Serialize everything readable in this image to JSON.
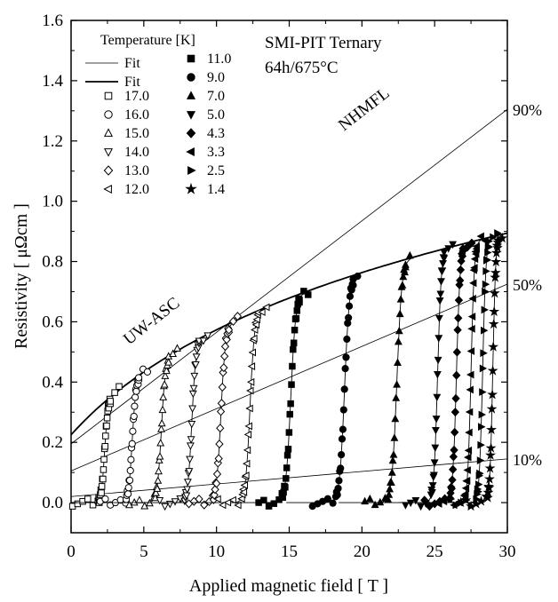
{
  "chart_data": {
    "type": "scatter",
    "xlabel": "Applied magnetic field [ T ]",
    "ylabel": "Resistivity [ μΩcm ]",
    "xlim": [
      0,
      30
    ],
    "ylim": [
      -0.1,
      1.6
    ],
    "x_ticks": [
      "0",
      "5",
      "10",
      "15",
      "20",
      "25",
      "30"
    ],
    "y_ticks": [
      "0.0",
      "0.2",
      "0.4",
      "0.6",
      "0.8",
      "1.0",
      "1.2",
      "1.4",
      "1.6"
    ],
    "title_line1": "SMI-PIT Ternary",
    "title_line2": "64h/675°C",
    "legend_title": "Temperature [K]",
    "legend_fit_label": "Fit",
    "annotations": {
      "low_field": "UW-ASC",
      "high_field": "NHMFL"
    },
    "percent_labels": [
      {
        "text": "90%",
        "value": 0.9
      },
      {
        "text": "50%",
        "value": 0.5
      },
      {
        "text": "10%",
        "value": 0.1
      }
    ],
    "normal_state": {
      "intercept": 0.225,
      "slope": 0.0537,
      "sat": 8.0
    },
    "percent_lines": [
      {
        "percent": 90,
        "x": [
          0,
          30
        ],
        "y0": 0.195,
        "y1": 1.305
      },
      {
        "percent": 50,
        "x": [
          0,
          30
        ],
        "y0": 0.105,
        "y1": 0.725
      },
      {
        "percent": 10,
        "x": [
          0,
          30
        ],
        "y0": 0.02,
        "y1": 0.145
      }
    ],
    "series": [
      {
        "name": "17.0",
        "marker": "square",
        "filled": false,
        "hc2": 2.3,
        "width": 0.4
      },
      {
        "name": "16.0",
        "marker": "circle",
        "filled": false,
        "hc2": 4.2,
        "width": 0.45
      },
      {
        "name": "15.0",
        "marker": "triangle-up",
        "filled": false,
        "hc2": 6.2,
        "width": 0.5
      },
      {
        "name": "14.0",
        "marker": "triangle-down",
        "filled": false,
        "hc2": 8.3,
        "width": 0.5
      },
      {
        "name": "13.0",
        "marker": "diamond",
        "filled": false,
        "hc2": 10.3,
        "width": 0.55
      },
      {
        "name": "12.0",
        "marker": "triangle-left",
        "filled": false,
        "hc2": 12.3,
        "width": 0.55
      },
      {
        "name": "11.0",
        "marker": "square",
        "filled": true,
        "hc2": 15.1,
        "width": 0.6
      },
      {
        "name": "9.0",
        "marker": "circle",
        "filled": true,
        "hc2": 18.8,
        "width": 0.6
      },
      {
        "name": "7.0",
        "marker": "triangle-up",
        "filled": true,
        "hc2": 22.4,
        "width": 0.6
      },
      {
        "name": "5.0",
        "marker": "triangle-down",
        "filled": true,
        "hc2": 25.2,
        "width": 0.45
      },
      {
        "name": "4.3",
        "marker": "diamond",
        "filled": true,
        "hc2": 26.5,
        "width": 0.45
      },
      {
        "name": "3.3",
        "marker": "triangle-left",
        "filled": true,
        "hc2": 27.5,
        "width": 0.4
      },
      {
        "name": "2.5",
        "marker": "triangle-right",
        "filled": true,
        "hc2": 28.3,
        "width": 0.4
      },
      {
        "name": "1.4",
        "marker": "star",
        "filled": true,
        "hc2": 29.0,
        "width": 0.35
      }
    ]
  }
}
